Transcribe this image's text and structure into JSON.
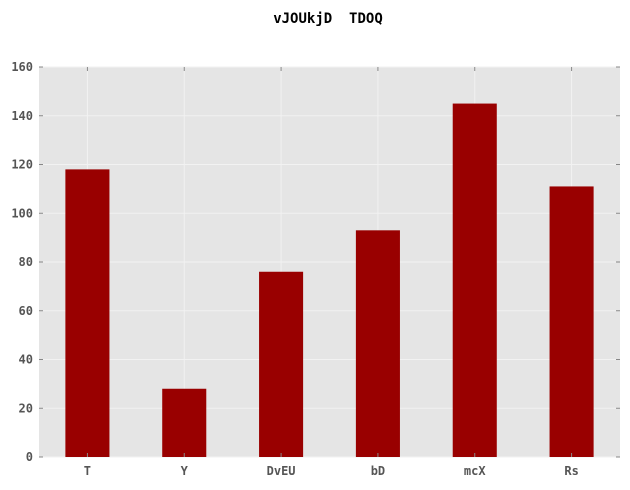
{
  "chart_data": {
    "type": "bar",
    "title": "vJOUkjD  TDOQ",
    "xlabel": "",
    "ylabel": "",
    "categories": [
      "T",
      "Y",
      "DvEU",
      "bD",
      "mcX",
      "Rs"
    ],
    "values": [
      118,
      28,
      76,
      93,
      145,
      111
    ],
    "ylim": [
      0,
      160
    ],
    "yticks": [
      0,
      20,
      40,
      60,
      80,
      100,
      120,
      140,
      160
    ],
    "grid": true,
    "legend": "none",
    "colors": {
      "bar": "#990000",
      "plot_background": "#e5e5e5",
      "grid": "#f2f2f2",
      "tick_text": "#555555",
      "title_text": "#000000"
    }
  }
}
